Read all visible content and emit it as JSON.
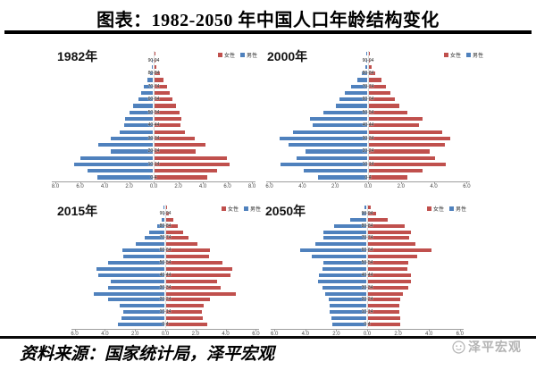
{
  "header": {
    "title": "图表：1982-2050 年中国人口年龄结构变化"
  },
  "footer": {
    "source": "资料来源：国家统计局，泽平宏观",
    "logo_text": "泽平宏观",
    "logo_icon": "smiley-face-icon",
    "logo_color": "#b3b3b3"
  },
  "colors": {
    "male": "#4F81BD",
    "female": "#C0504D",
    "axis": "#9e9e9e"
  },
  "chart_data": [
    {
      "type": "bar",
      "subtype": "population_pyramid",
      "title": "1982年",
      "age_group_order": "youngest_to_oldest_bottom_to_top",
      "age_groups": [
        "0-4",
        "5-9",
        "10-14",
        "15-19",
        "20-24",
        "25-29",
        "30-34",
        "35-39",
        "40-44",
        "45-49",
        "50-54",
        "55-59",
        "60-64",
        "65-69",
        "70-74",
        "75-79",
        "80-84",
        "85-89",
        "90-94",
        "95+"
      ],
      "xmax": 8,
      "x_tick_labels": [
        "8.0",
        "6.0",
        "4.0",
        "2.0",
        "0.0",
        "2.0",
        "4.0",
        "6.0",
        "8.0"
      ],
      "legend": [
        {
          "label": "女性",
          "color": "#C0504D"
        },
        {
          "label": "男性",
          "color": "#4F81BD"
        }
      ],
      "series": [
        {
          "name": "男性",
          "side": "left",
          "color": "#4F81BD",
          "values": [
            4.5,
            5.3,
            6.4,
            5.9,
            3.4,
            4.45,
            3.4,
            2.7,
            2.35,
            2.25,
            1.9,
            1.6,
            1.2,
            0.95,
            0.75,
            0.45,
            0.2,
            0.07,
            0.02,
            0
          ]
        },
        {
          "name": "女性",
          "side": "right",
          "color": "#C0504D",
          "values": [
            4.3,
            5.1,
            6.1,
            5.9,
            3.35,
            4.15,
            3.3,
            2.45,
            2.1,
            2.2,
            2.05,
            1.75,
            1.45,
            1.2,
            1.0,
            0.7,
            0.4,
            0.15,
            0.06,
            0.02
          ]
        }
      ]
    },
    {
      "type": "bar",
      "subtype": "population_pyramid",
      "title": "2000年",
      "age_group_order": "youngest_to_oldest_bottom_to_top",
      "age_groups": [
        "0-4",
        "5-9",
        "10-14",
        "15-19",
        "20-24",
        "25-29",
        "30-34",
        "35-39",
        "40-44",
        "45-49",
        "50-54",
        "55-59",
        "60-64",
        "65-69",
        "70-74",
        "75-79",
        "80-84",
        "85-89",
        "90-94",
        "95+"
      ],
      "xmax": 6,
      "x_tick_labels": [
        "6.0",
        "4.0",
        "2.0",
        "0.0",
        "2.0",
        "4.0",
        "6.0"
      ],
      "legend": [
        {
          "label": "女性",
          "color": "#C0504D"
        },
        {
          "label": "男性",
          "color": "#4F81BD"
        }
      ],
      "series": [
        {
          "name": "男性",
          "side": "left",
          "color": "#4F81BD",
          "values": [
            3.0,
            3.85,
            5.25,
            4.3,
            3.75,
            4.8,
            5.3,
            4.5,
            3.3,
            3.5,
            2.65,
            1.9,
            1.7,
            1.35,
            1.0,
            0.6,
            0.3,
            0.1,
            0.03,
            0.01
          ]
        },
        {
          "name": "女性",
          "side": "right",
          "color": "#C0504D",
          "values": [
            2.35,
            3.25,
            4.7,
            4.0,
            3.7,
            4.6,
            4.95,
            4.45,
            3.05,
            3.25,
            2.35,
            1.85,
            1.6,
            1.3,
            1.05,
            0.75,
            0.4,
            0.15,
            0.06,
            0.02
          ]
        }
      ]
    },
    {
      "type": "bar",
      "subtype": "population_pyramid",
      "title": "2015年",
      "age_group_order": "youngest_to_oldest_bottom_to_top",
      "age_groups": [
        "0-4",
        "5-9",
        "10-14",
        "15-19",
        "20-24",
        "25-29",
        "30-34",
        "35-39",
        "40-44",
        "45-49",
        "50-54",
        "55-59",
        "60-64",
        "65-69",
        "70-74",
        "75-79",
        "80-84",
        "85-89",
        "90-94",
        "95+"
      ],
      "xmax": 6,
      "x_tick_labels": [
        "6.0",
        "4.0",
        "2.0",
        "0.0",
        "2.0",
        "4.0",
        "6.0"
      ],
      "legend": [
        {
          "label": "女性",
          "color": "#C0504D"
        },
        {
          "label": "男性",
          "color": "#4F81BD"
        }
      ],
      "series": [
        {
          "name": "男性",
          "side": "left",
          "color": "#4F81BD",
          "values": [
            3.1,
            2.85,
            2.7,
            2.95,
            3.75,
            4.7,
            3.75,
            3.55,
            4.4,
            4.5,
            3.75,
            2.75,
            2.8,
            1.9,
            1.3,
            1.0,
            0.45,
            0.15,
            0.03,
            0.01
          ]
        },
        {
          "name": "女性",
          "side": "right",
          "color": "#C0504D",
          "values": [
            2.75,
            2.4,
            2.35,
            2.5,
            2.9,
            4.6,
            3.6,
            3.4,
            4.25,
            4.4,
            3.7,
            2.85,
            2.9,
            2.1,
            1.45,
            1.15,
            0.75,
            0.45,
            0.18,
            0.05
          ]
        }
      ]
    },
    {
      "type": "bar",
      "subtype": "population_pyramid",
      "title": "2050年",
      "age_group_order": "youngest_to_oldest_bottom_to_top",
      "age_groups": [
        "0-4",
        "5-9",
        "10-14",
        "15-19",
        "20-24",
        "25-29",
        "30-34",
        "35-39",
        "40-44",
        "45-49",
        "50-54",
        "55-59",
        "60-64",
        "65-69",
        "70-74",
        "75-79",
        "80-84",
        "85-89",
        "90-94",
        "95+"
      ],
      "xmax": 6,
      "x_tick_labels": [
        "6.0",
        "4.0",
        "2.0",
        "0.0",
        "2.0",
        "4.0",
        "6.0"
      ],
      "legend": [
        {
          "label": "女性",
          "color": "#C0504D"
        },
        {
          "label": "男性",
          "color": "#4F81BD"
        }
      ],
      "series": [
        {
          "name": "男性",
          "side": "left",
          "color": "#4F81BD",
          "values": [
            2.2,
            2.25,
            2.35,
            2.35,
            2.45,
            2.65,
            2.85,
            3.1,
            3.05,
            2.85,
            2.8,
            3.5,
            4.25,
            3.3,
            2.8,
            2.8,
            2.1,
            1.05,
            0.3,
            0.1
          ]
        },
        {
          "name": "女性",
          "side": "right",
          "color": "#C0504D",
          "values": [
            2.1,
            2.1,
            2.0,
            2.05,
            2.1,
            2.25,
            2.6,
            2.75,
            2.75,
            2.55,
            2.6,
            3.2,
            4.1,
            3.05,
            2.65,
            2.75,
            2.35,
            1.25,
            0.5,
            0.2
          ]
        }
      ]
    }
  ]
}
